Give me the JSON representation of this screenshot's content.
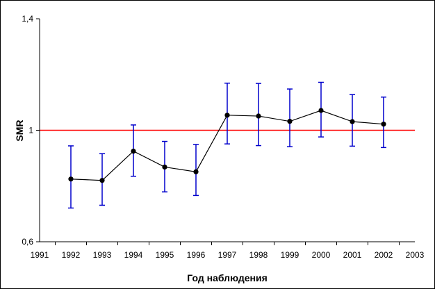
{
  "chart_data": {
    "type": "line",
    "title": "",
    "xlabel": "Год наблюдения",
    "ylabel": "SMR",
    "x_ticks": [
      "1991",
      "1992",
      "1993",
      "1994",
      "1995",
      "1996",
      "1997",
      "1998",
      "1999",
      "2000",
      "2001",
      "2002",
      "2003"
    ],
    "y_ticks": [
      "1,4",
      "1",
      "0,6"
    ],
    "y_tick_values": [
      1.4,
      1.0,
      0.6
    ],
    "xlim": [
      1991,
      2003
    ],
    "ylim": [
      0.6,
      1.4
    ],
    "grid": false,
    "series": [
      {
        "x": [
          1992,
          1993,
          1994,
          1995,
          1996,
          1997,
          1998,
          1999,
          2000,
          2001,
          2002
        ],
        "values": [
          0.825,
          0.82,
          0.925,
          0.868,
          0.851,
          1.054,
          1.051,
          1.032,
          1.071,
          1.031,
          1.022
        ],
        "error_low": [
          0.721,
          0.731,
          0.835,
          0.779,
          0.766,
          0.951,
          0.945,
          0.941,
          0.976,
          0.943,
          0.938
        ],
        "error_high": [
          0.944,
          0.916,
          1.019,
          0.96,
          0.949,
          1.169,
          1.168,
          1.148,
          1.172,
          1.128,
          1.119
        ],
        "line_color": "#000000",
        "marker_color": "#000000",
        "error_bar_color": "#0000cc"
      }
    ],
    "reference_line": {
      "y": 1.0,
      "color": "#ff0000"
    }
  }
}
